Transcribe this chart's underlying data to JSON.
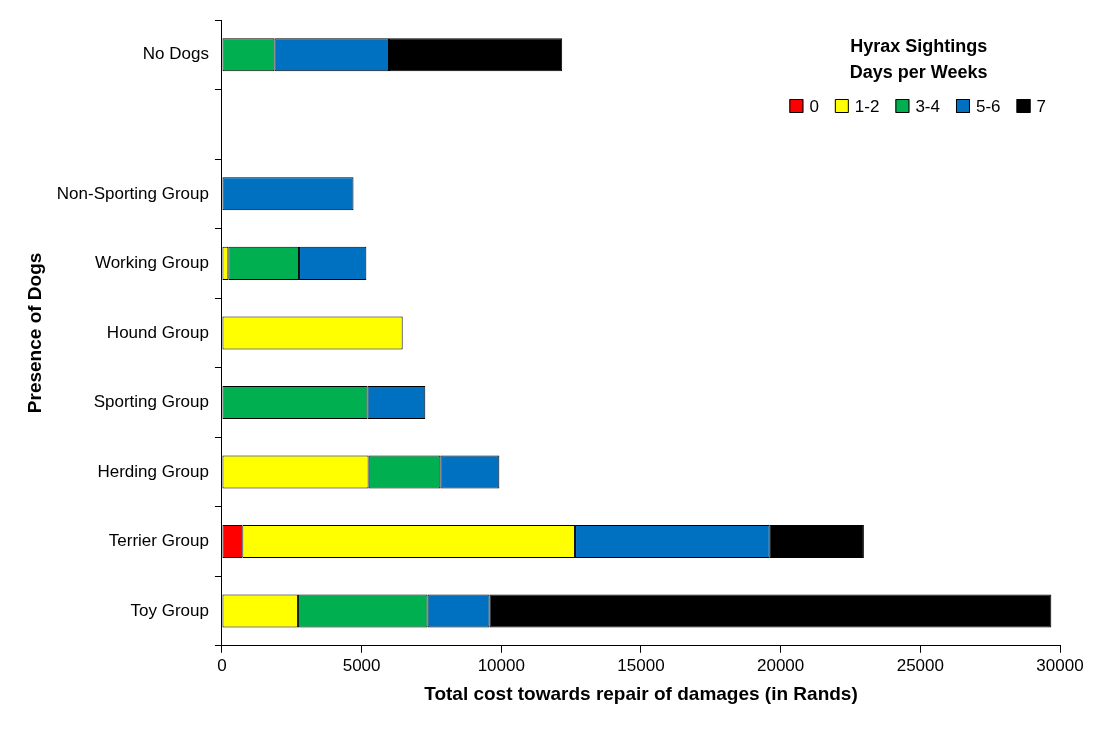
{
  "chart_data": {
    "type": "bar",
    "orientation": "horizontal",
    "stacked": true,
    "xlabel": "Total cost towards repair of damages (in Rands)",
    "ylabel": "Presence of Dogs",
    "legend_title": "Hyrax Sightings\nDays per Weeks",
    "legend": "top right",
    "grid": false,
    "categories": [
      "No Dogs",
      null,
      "Non-Sporting Group",
      "Working Group",
      "Hound Group",
      "Sporting Group",
      "Herding Group",
      "Terrier Group",
      "Toy Group"
    ],
    "xlim": [
      0,
      30000
    ],
    "xticks": [
      0,
      5000,
      10000,
      15000,
      20000,
      25000,
      30000
    ],
    "series": [
      {
        "name": "0",
        "color": "#ff0000",
        "values": [
          null,
          null,
          null,
          null,
          null,
          null,
          null,
          730,
          null
        ]
      },
      {
        "name": "1-2",
        "color": "#ffff00",
        "values": [
          null,
          null,
          null,
          230,
          6470,
          null,
          5250,
          11910,
          2720
        ]
      },
      {
        "name": "3-4",
        "color": "#00b050",
        "values": [
          1880,
          null,
          null,
          2530,
          null,
          5210,
          2570,
          null,
          4640
        ]
      },
      {
        "name": "5-6",
        "color": "#0070c0",
        "values": [
          4100,
          null,
          4710,
          2410,
          null,
          2070,
          2110,
          6970,
          2220
        ]
      },
      {
        "name": "7",
        "color": "#000000",
        "values": [
          6200,
          null,
          null,
          null,
          null,
          null,
          null,
          3370,
          20110
        ]
      }
    ]
  }
}
